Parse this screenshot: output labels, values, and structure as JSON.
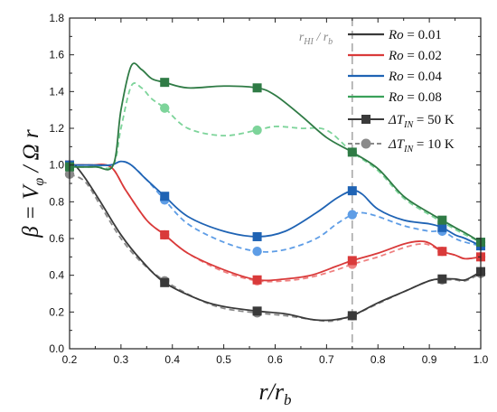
{
  "chart_data": {
    "type": "line",
    "title": "",
    "xlabel": "r/r_b",
    "ylabel": "β = V_φ / Ω r",
    "xlim": [
      0.2,
      1.0
    ],
    "ylim": [
      0.0,
      1.8
    ],
    "xticks": [
      "0.2",
      "0.3",
      "0.4",
      "0.5",
      "0.6",
      "0.7",
      "0.8",
      "0.9",
      "1.0"
    ],
    "yticks": [
      "0.0",
      "0.2",
      "0.4",
      "0.6",
      "0.8",
      "1.0",
      "1.2",
      "1.4",
      "1.6",
      "1.8"
    ],
    "vline": {
      "x": 0.75,
      "label": "r_HI / r_b"
    },
    "legend_position": "top-right",
    "legend": [
      {
        "label": "Ro = 0.01",
        "color": "#3a3a3a"
      },
      {
        "label": "Ro = 0.02",
        "color": "#d93a3a"
      },
      {
        "label": "Ro = 0.04",
        "color": "#1f63b4"
      },
      {
        "label": "Ro = 0.08",
        "color": "#3aa15a"
      },
      {
        "label": "ΔT_IN = 50 K",
        "style": "solid",
        "marker": "square"
      },
      {
        "label": "ΔT_IN = 10 K",
        "style": "dashed",
        "marker": "circle"
      }
    ],
    "series": [
      {
        "name": "Ro = 0.01",
        "dT": "50 K",
        "color": "#3a3a3a",
        "dash": false,
        "marker": "square",
        "x": [
          0.2,
          0.21,
          0.23,
          0.26,
          0.3,
          0.34,
          0.385,
          0.45,
          0.5,
          0.565,
          0.62,
          0.67,
          0.7,
          0.72,
          0.75,
          0.8,
          0.85,
          0.9,
          0.925,
          0.95,
          0.97,
          1.0
        ],
        "y": [
          1.0,
          1.0,
          0.93,
          0.8,
          0.62,
          0.48,
          0.36,
          0.27,
          0.23,
          0.205,
          0.19,
          0.16,
          0.155,
          0.16,
          0.18,
          0.25,
          0.31,
          0.37,
          0.38,
          0.38,
          0.375,
          0.42
        ]
      },
      {
        "name": "Ro = 0.01",
        "dT": "10 K",
        "color": "#8a8a8a",
        "dash": true,
        "marker": "circle",
        "x": [
          0.2,
          0.23,
          0.26,
          0.3,
          0.34,
          0.385,
          0.45,
          0.5,
          0.565,
          0.62,
          0.67,
          0.7,
          0.72,
          0.75,
          0.8,
          0.85,
          0.9,
          0.925,
          0.95,
          0.97,
          1.0
        ],
        "y": [
          0.95,
          0.91,
          0.78,
          0.6,
          0.47,
          0.37,
          0.27,
          0.22,
          0.195,
          0.18,
          0.16,
          0.15,
          0.155,
          0.18,
          0.245,
          0.31,
          0.37,
          0.375,
          0.375,
          0.37,
          0.41
        ]
      },
      {
        "name": "Ro = 0.02",
        "dT": "50 K",
        "color": "#d93a3a",
        "dash": false,
        "marker": "square",
        "x": [
          0.2,
          0.24,
          0.28,
          0.31,
          0.35,
          0.385,
          0.43,
          0.5,
          0.565,
          0.62,
          0.67,
          0.72,
          0.75,
          0.8,
          0.85,
          0.88,
          0.9,
          0.925,
          0.95,
          0.97,
          1.0
        ],
        "y": [
          1.0,
          1.0,
          0.99,
          0.86,
          0.7,
          0.62,
          0.52,
          0.43,
          0.375,
          0.38,
          0.4,
          0.45,
          0.48,
          0.52,
          0.57,
          0.585,
          0.575,
          0.53,
          0.51,
          0.49,
          0.5
        ]
      },
      {
        "name": "Ro = 0.02",
        "dT": "10 K",
        "color": "#ef8080",
        "dash": true,
        "marker": "circle",
        "x": [
          0.2,
          0.24,
          0.28,
          0.31,
          0.35,
          0.385,
          0.43,
          0.5,
          0.565,
          0.62,
          0.67,
          0.72,
          0.75,
          0.8,
          0.85,
          0.88,
          0.9,
          0.925,
          0.95,
          0.97,
          1.0
        ],
        "y": [
          1.0,
          1.0,
          0.99,
          0.86,
          0.7,
          0.62,
          0.52,
          0.42,
          0.37,
          0.37,
          0.39,
          0.43,
          0.46,
          0.5,
          0.55,
          0.57,
          0.565,
          0.53,
          0.51,
          0.49,
          0.5
        ]
      },
      {
        "name": "Ro = 0.04",
        "dT": "50 K",
        "color": "#1f63b4",
        "dash": false,
        "marker": "square",
        "x": [
          0.2,
          0.24,
          0.28,
          0.3,
          0.32,
          0.35,
          0.385,
          0.43,
          0.5,
          0.565,
          0.62,
          0.68,
          0.72,
          0.75,
          0.77,
          0.8,
          0.85,
          0.9,
          0.925,
          0.95,
          0.97,
          1.0
        ],
        "y": [
          1.0,
          1.0,
          1.0,
          1.02,
          1.0,
          0.92,
          0.83,
          0.72,
          0.64,
          0.61,
          0.64,
          0.74,
          0.82,
          0.86,
          0.84,
          0.76,
          0.7,
          0.68,
          0.66,
          0.62,
          0.6,
          0.56
        ]
      },
      {
        "name": "Ro = 0.04",
        "dT": "10 K",
        "color": "#5e9de6",
        "dash": true,
        "marker": "circle",
        "x": [
          0.2,
          0.24,
          0.28,
          0.3,
          0.32,
          0.35,
          0.385,
          0.43,
          0.5,
          0.565,
          0.62,
          0.68,
          0.72,
          0.75,
          0.77,
          0.8,
          0.85,
          0.9,
          0.925,
          0.95,
          0.97,
          1.0
        ],
        "y": [
          1.0,
          1.0,
          1.0,
          1.02,
          1.0,
          0.92,
          0.81,
          0.68,
          0.58,
          0.53,
          0.54,
          0.6,
          0.68,
          0.73,
          0.74,
          0.72,
          0.67,
          0.64,
          0.64,
          0.6,
          0.58,
          0.56
        ]
      },
      {
        "name": "Ro = 0.08",
        "dT": "50 K",
        "color": "#2f7b45",
        "dash": false,
        "marker": "square",
        "x": [
          0.2,
          0.25,
          0.285,
          0.3,
          0.32,
          0.34,
          0.36,
          0.385,
          0.43,
          0.5,
          0.565,
          0.6,
          0.65,
          0.7,
          0.75,
          0.8,
          0.85,
          0.9,
          0.925,
          0.95,
          0.97,
          1.0
        ],
        "y": [
          0.99,
          0.99,
          1.0,
          1.3,
          1.54,
          1.52,
          1.47,
          1.45,
          1.42,
          1.43,
          1.42,
          1.38,
          1.27,
          1.15,
          1.07,
          0.98,
          0.83,
          0.74,
          0.7,
          0.66,
          0.63,
          0.58
        ]
      },
      {
        "name": "Ro = 0.08",
        "dT": "10 K",
        "color": "#7dd49a",
        "dash": true,
        "marker": "circle",
        "x": [
          0.2,
          0.25,
          0.285,
          0.3,
          0.32,
          0.34,
          0.36,
          0.385,
          0.43,
          0.5,
          0.565,
          0.6,
          0.65,
          0.7,
          0.75,
          0.8,
          0.85,
          0.9,
          0.925,
          0.95,
          0.97,
          1.0
        ],
        "y": [
          0.99,
          0.99,
          1.0,
          1.2,
          1.43,
          1.42,
          1.36,
          1.31,
          1.2,
          1.16,
          1.19,
          1.21,
          1.2,
          1.19,
          1.07,
          0.97,
          0.82,
          0.73,
          0.69,
          0.65,
          0.62,
          0.58
        ]
      }
    ],
    "markers_x": [
      0.2,
      0.385,
      0.565,
      0.75,
      0.925,
      1.0
    ]
  }
}
